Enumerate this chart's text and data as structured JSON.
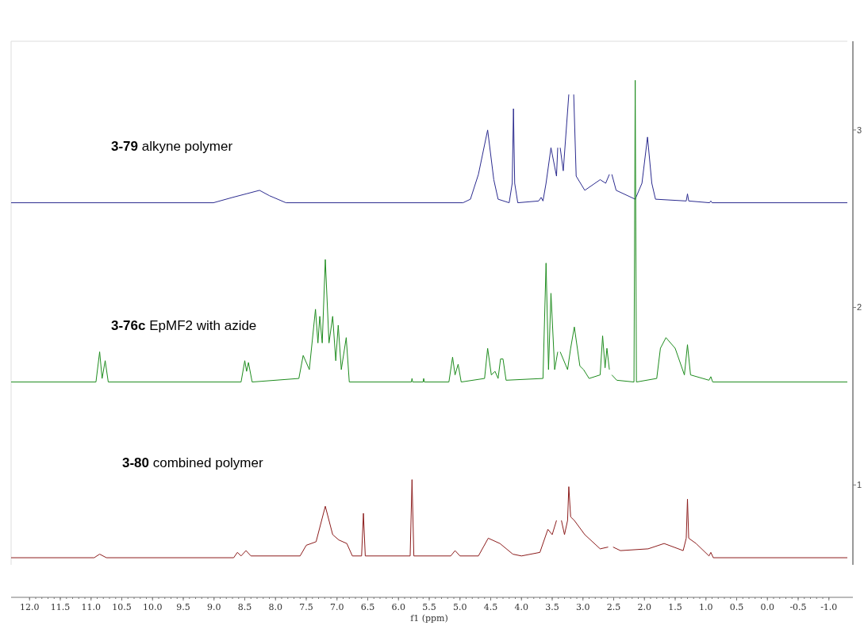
{
  "chart_data": {
    "type": "line",
    "xlabel": "f1 (ppm)",
    "xlim": [
      12.3,
      -1.3
    ],
    "ylim": [
      0.55,
      3.5
    ],
    "xticks": [
      {
        "value": 12,
        "label": "12.0"
      },
      11.5,
      {
        "value": 11,
        "label": "11.0"
      },
      10.5,
      {
        "value": 10,
        "label": "10.0"
      },
      9.5,
      {
        "value": 9,
        "label": "9.0"
      },
      8.5,
      {
        "value": 8,
        "label": "8.0"
      },
      7.5,
      {
        "value": 7,
        "label": "7.0"
      },
      6.5,
      {
        "value": 6,
        "label": "6.0"
      },
      5.5,
      {
        "value": 5,
        "label": "5.0"
      },
      4.5,
      {
        "value": 4,
        "label": "4.0"
      },
      3.5,
      {
        "value": 3,
        "label": "3.0"
      },
      2.5,
      {
        "value": 2,
        "label": "2.0"
      },
      1.5,
      {
        "value": 1,
        "label": "1.0"
      },
      0.5,
      {
        "value": 0,
        "label": "0.0"
      },
      -0.5,
      {
        "value": -1,
        "label": "-1.0"
      }
    ],
    "yticks": [
      1,
      2,
      3
    ],
    "grid": false,
    "marker": "none",
    "line_style": "solid",
    "series": [
      {
        "color": "#2b2b8f",
        "x": [
          12.3,
          9.01,
          8.7,
          8.48,
          8.26,
          8.1,
          7.83,
          4.95,
          4.83,
          4.7,
          4.55,
          4.45,
          4.38,
          4.2,
          4.15,
          4.13,
          4.11,
          4.06,
          3.72,
          3.68,
          3.65,
          3.6,
          3.52,
          3.43,
          3.41,
          3.39,
          3.37,
          3.32,
          3.23,
          3.19,
          3.15,
          3.11,
          2.97,
          2.72,
          2.63,
          2.57,
          2.55,
          2.53,
          2.46,
          2.15,
          2.04,
          1.95,
          1.88,
          1.82,
          1.32,
          1.3,
          1.28,
          0.94,
          0.92,
          0.9,
          -1.3
        ],
        "values": [
          2.59,
          2.59,
          2.62,
          2.64,
          2.66,
          2.63,
          2.59,
          2.59,
          2.61,
          2.75,
          3.0,
          2.72,
          2.61,
          2.59,
          2.7,
          3.12,
          2.7,
          2.59,
          2.6,
          2.62,
          2.6,
          2.7,
          2.9,
          2.74,
          2.9,
          null,
          2.9,
          2.77,
          3.2,
          null,
          3.2,
          2.74,
          2.66,
          2.72,
          2.7,
          2.75,
          null,
          2.75,
          2.66,
          2.61,
          2.7,
          2.96,
          2.7,
          2.61,
          2.6,
          2.64,
          2.6,
          2.59,
          2.6,
          2.59,
          2.59
        ]
      },
      {
        "color": "#1e8c1e",
        "x": [
          12.3,
          10.92,
          10.86,
          10.82,
          10.77,
          10.72,
          8.56,
          8.5,
          8.47,
          8.44,
          8.38,
          7.62,
          7.55,
          7.45,
          7.35,
          7.31,
          7.28,
          7.24,
          7.19,
          7.13,
          7.07,
          7.02,
          6.98,
          6.93,
          6.85,
          6.8,
          5.79,
          5.78,
          5.77,
          5.6,
          5.59,
          5.58,
          5.18,
          5.12,
          5.08,
          5.03,
          4.98,
          4.6,
          4.55,
          4.49,
          4.43,
          4.38,
          4.34,
          4.3,
          4.25,
          3.65,
          3.6,
          3.56,
          3.52,
          3.46,
          3.41,
          3.39,
          3.37,
          3.25,
          3.2,
          3.14,
          3.05,
          2.99,
          2.9,
          2.72,
          2.68,
          2.64,
          2.61,
          2.57,
          2.55,
          2.53,
          2.45,
          2.17,
          2.15,
          2.13,
          1.8,
          1.74,
          1.65,
          1.5,
          1.35,
          1.3,
          1.25,
          0.95,
          0.92,
          0.89,
          -1.3
        ],
        "values": [
          1.58,
          1.58,
          1.75,
          1.6,
          1.7,
          1.58,
          1.58,
          1.7,
          1.64,
          1.69,
          1.58,
          1.6,
          1.73,
          1.65,
          1.99,
          1.8,
          1.95,
          1.8,
          2.27,
          1.8,
          1.95,
          1.7,
          1.9,
          1.65,
          1.83,
          1.58,
          1.58,
          1.6,
          1.58,
          1.58,
          1.6,
          1.58,
          1.58,
          1.72,
          1.62,
          1.68,
          1.58,
          1.6,
          1.77,
          1.62,
          1.64,
          1.6,
          1.71,
          1.71,
          1.59,
          1.6,
          2.25,
          1.65,
          2.08,
          1.65,
          1.75,
          null,
          1.75,
          1.65,
          1.77,
          1.89,
          1.67,
          1.65,
          1.6,
          1.62,
          1.84,
          1.66,
          1.77,
          1.65,
          null,
          1.62,
          1.59,
          1.58,
          3.28,
          1.58,
          1.6,
          1.77,
          1.83,
          1.77,
          1.62,
          1.79,
          1.62,
          1.59,
          1.61,
          1.58,
          1.58
        ]
      },
      {
        "color": "#8c1c1c",
        "x": [
          12.3,
          10.95,
          10.86,
          10.75,
          8.68,
          8.62,
          8.56,
          8.48,
          8.4,
          7.6,
          7.5,
          7.34,
          7.19,
          7.07,
          6.97,
          6.84,
          6.75,
          6.6,
          6.57,
          6.54,
          5.81,
          5.78,
          5.75,
          5.15,
          5.08,
          5.0,
          4.7,
          4.54,
          4.35,
          4.14,
          4.0,
          3.7,
          3.57,
          3.5,
          3.43,
          3.39,
          3.35,
          3.3,
          3.25,
          3.23,
          3.2,
          3.14,
          2.97,
          2.72,
          2.59,
          2.55,
          2.51,
          2.39,
          1.94,
          1.68,
          1.37,
          1.32,
          1.3,
          1.28,
          1.16,
          0.95,
          0.92,
          0.88,
          -1.3
        ],
        "values": [
          0.59,
          0.59,
          0.61,
          0.59,
          0.59,
          0.62,
          0.6,
          0.63,
          0.6,
          0.6,
          0.66,
          0.68,
          0.88,
          0.72,
          0.69,
          0.67,
          0.6,
          0.6,
          0.84,
          0.6,
          0.6,
          1.03,
          0.6,
          0.6,
          0.63,
          0.6,
          0.6,
          0.7,
          0.67,
          0.61,
          0.6,
          0.62,
          0.75,
          0.72,
          0.8,
          null,
          0.8,
          0.72,
          0.8,
          0.99,
          0.82,
          0.8,
          0.72,
          0.64,
          0.65,
          null,
          0.65,
          0.63,
          0.64,
          0.67,
          0.63,
          0.7,
          0.92,
          0.7,
          0.67,
          0.6,
          0.62,
          0.59,
          0.59
        ]
      }
    ],
    "annotations": [
      "3-79 alkyne polymer",
      "3-76c EpMF2 with azide",
      "3-80 combined polymer"
    ]
  }
}
